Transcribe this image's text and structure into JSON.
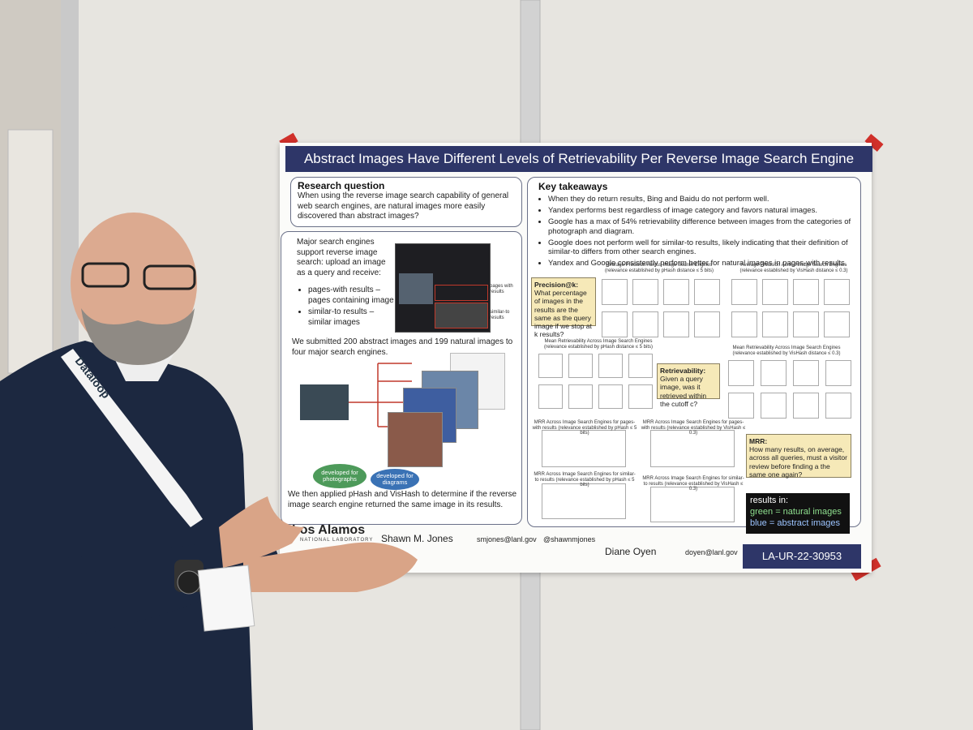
{
  "poster": {
    "title": "Abstract Images Have Different Levels of Retrievability Per Reverse Image Search Engine",
    "research_question": {
      "heading": "Research question",
      "text": "When using the reverse image search capability of general web search engines, are natural images more easily discovered than abstract images?"
    },
    "method": {
      "intro": "Major search engines support reverse image search: upload an image as a query and receive:",
      "bullets": [
        "pages-with results – pages containing image",
        "similar-to results – similar images"
      ],
      "screenshot_labels": [
        "pages with results",
        "similar-to results"
      ],
      "submitted": "We submitted 200 abstract images and 199 natural images to four major search engines.",
      "badges": [
        "developed for photographs",
        "developed for diagrams"
      ],
      "applied": "We then applied pHash and VisHash to determine if the reverse image search engine returned the same image in its results."
    },
    "takeaways": {
      "heading": "Key takeaways",
      "items": [
        "When they do return results, Bing and Baidu do not perform well.",
        "Yandex performs best regardless of image category and favors natural images.",
        "Google has a max of 54% retrievability difference between images from the categories of photograph and diagram.",
        "Google does not perform well for similar-to results, likely indicating that their definition of similar-to differs from other search engines.",
        "Yandex and Google consistently perform better for natural images in pages-with results."
      ]
    },
    "figures": {
      "titles": [
        "Average Precision Across Image Search Engines (relevance established by pHash distance ≤ 5 bits)",
        "Average Precision Across Image Search Engines (relevance established by VisHash distance ≤ 0.3)",
        "Mean Retrievability Across Image Search Engines (relevance established by pHash distance ≤ 5 bits)",
        "Mean Retrievability Across Image Search Engines (relevance established by VisHash distance ≤ 0.3)",
        "MRR Across Image Search Engines for pages-with results (relevance established by pHash ≤ 5 bits)",
        "MRR Across Image Search Engines for pages-with results (relevance established by VisHash ≤ 0.3)",
        "MRR Across Image Search Engines for similar-to results (relevance established by pHash ≤ 5 bits)",
        "MRR Across Image Search Engines for similar-to results (relevance established by VisHash ≤ 0.3)"
      ],
      "precision": {
        "heading": "Precision@k:",
        "text": "What percentage of images in the results are the same as the query image if we stop at k results?"
      },
      "retrievability": {
        "heading": "Retrievability:",
        "text": "Given a query image, was it retrieved within the cutoff c?"
      },
      "mrr": {
        "heading": "MRR:",
        "text": "How many results, on average, across all queries, must a visitor review before finding a the same one again?"
      },
      "legend": {
        "heading": "results in:",
        "lines": [
          "green = natural images",
          "blue = abstract images"
        ]
      }
    },
    "footer": {
      "lab": "Los Alamos",
      "lab_sub": "NATIONAL LABORATORY",
      "authors": [
        {
          "name": "Shawn M. Jones",
          "email": "smjones@lanl.gov",
          "handle": "@shawnmjones"
        },
        {
          "name": "Diane Oyen",
          "email": "doyen@lanl.gov"
        }
      ],
      "report": "LA-UR-22-30953"
    }
  },
  "lanyard": "Dataloop"
}
